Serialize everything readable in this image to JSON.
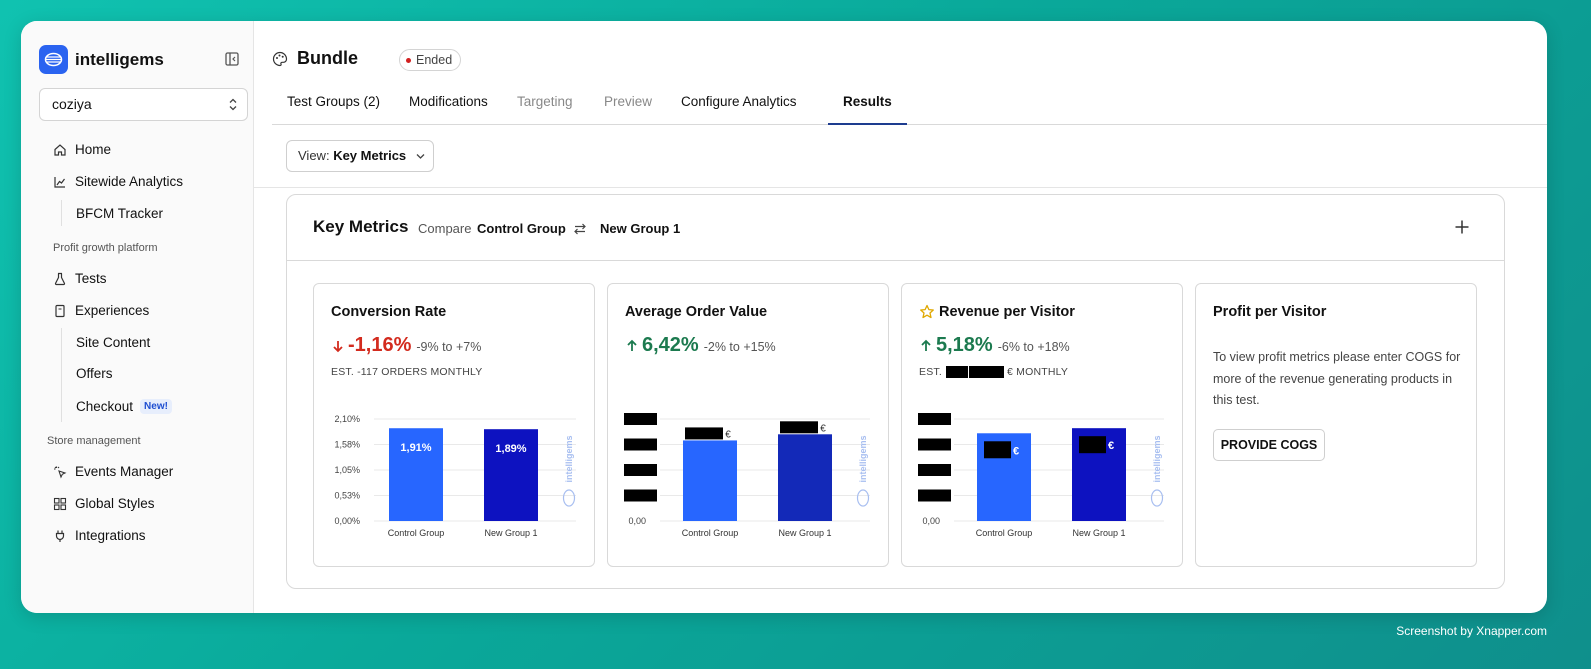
{
  "brand": {
    "name": "intelligems"
  },
  "store_selector": {
    "value": "coziya"
  },
  "sidebar": {
    "home": "Home",
    "sitewide_analytics": "Sitewide Analytics",
    "bfcm_tracker": "BFCM Tracker",
    "section_profit": "Profit growth platform",
    "tests": "Tests",
    "experiences": "Experiences",
    "site_content": "Site Content",
    "offers": "Offers",
    "checkout": "Checkout",
    "checkout_badge": "New!",
    "section_store": "Store management",
    "events_manager": "Events Manager",
    "global_styles": "Global Styles",
    "integrations": "Integrations"
  },
  "header": {
    "title": "Bundle",
    "status": "Ended"
  },
  "tabs": [
    {
      "label": "Test Groups (2)"
    },
    {
      "label": "Modifications"
    },
    {
      "label": "Targeting"
    },
    {
      "label": "Preview"
    },
    {
      "label": "Configure Analytics"
    },
    {
      "label": "Results"
    }
  ],
  "view_select": {
    "prefix": "View:",
    "value": "Key Metrics"
  },
  "key_metrics": {
    "title": "Key Metrics",
    "compare_label": "Compare",
    "group_a": "Control Group",
    "group_b": "New Group 1"
  },
  "cards": {
    "conversion": {
      "title": "Conversion Rate",
      "value": "-1,16%",
      "range": "-9% to +7%",
      "est": "EST. -117 ORDERS MONTHLY"
    },
    "aov": {
      "title": "Average Order Value",
      "value": "6,42%",
      "range": "-2% to +15%"
    },
    "rpv": {
      "title": "Revenue per Visitor",
      "value": "5,18%",
      "range": "-6% to +18%",
      "est_prefix": "EST.",
      "est_suffix": "€ MONTHLY"
    },
    "ppv": {
      "title": "Profit per Visitor",
      "text": "To view profit metrics please enter COGS for more of the revenue generating products in this test.",
      "button": "PROVIDE COGS"
    }
  },
  "chart_data": [
    {
      "type": "bar",
      "title": "Conversion Rate",
      "categories": [
        "Control Group",
        "New Group 1"
      ],
      "values": [
        1.91,
        1.89
      ],
      "labels": [
        "1,91%",
        "1,89%"
      ],
      "yticks": [
        "0,00%",
        "0,53%",
        "1,05%",
        "1,58%",
        "2,10%"
      ],
      "ylim": [
        0,
        2.1
      ],
      "colors": [
        "#2766ff",
        "#0d12c0"
      ]
    },
    {
      "type": "bar",
      "title": "Average Order Value",
      "categories": [
        "Control Group",
        "New Group 1"
      ],
      "values": [
        0.79,
        0.85
      ],
      "yticks": [
        "0,00"
      ],
      "ylim": [
        0,
        1
      ],
      "colors": [
        "#2766ff",
        "#1329b8"
      ]
    },
    {
      "type": "bar",
      "title": "Revenue per Visitor",
      "categories": [
        "Control Group",
        "New Group 1"
      ],
      "values": [
        0.86,
        0.91
      ],
      "yticks": [
        "0,00"
      ],
      "ylim": [
        0,
        1
      ],
      "colors": [
        "#2766ff",
        "#0d12c0"
      ]
    }
  ],
  "chart_watermark": "intelligems",
  "currency_symbol": "€",
  "credit": "Screenshot by Xnapper.com"
}
